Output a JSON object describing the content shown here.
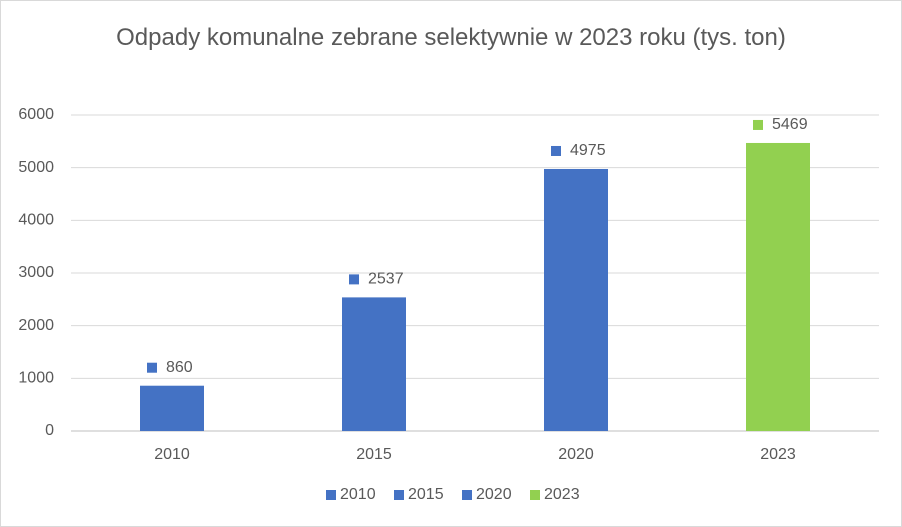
{
  "chart_data": {
    "type": "bar",
    "title": "Odpady komunalne zebrane selektywnie w 2023 roku (tys. ton)",
    "categories": [
      "2010",
      "2015",
      "2020",
      "2023"
    ],
    "values": [
      860,
      2537,
      4975,
      5469
    ],
    "colors": [
      "#4472c4",
      "#4472c4",
      "#4472c4",
      "#92d050"
    ],
    "ylim": [
      0,
      6000
    ],
    "yticks": [
      0,
      1000,
      2000,
      3000,
      4000,
      5000,
      6000
    ],
    "grid": true,
    "legend": "bottom"
  }
}
